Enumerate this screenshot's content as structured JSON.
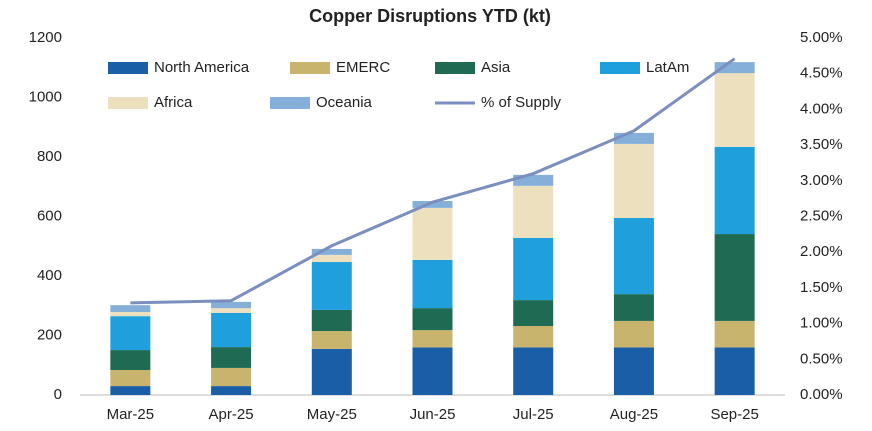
{
  "chart_data": {
    "type": "stacked_bar_line",
    "title": "Copper Disruptions YTD (kt)",
    "categories": [
      "Mar-25",
      "Apr-25",
      "May-25",
      "Jun-25",
      "Jul-25",
      "Aug-25",
      "Sep-25"
    ],
    "series": [
      {
        "name": "North America",
        "color": "#1a5ea8",
        "values": [
          30,
          30,
          155,
          160,
          160,
          160,
          160
        ]
      },
      {
        "name": "EMERC",
        "color": "#c8b46c",
        "values": [
          54,
          61,
          60,
          58,
          72,
          89,
          89
        ]
      },
      {
        "name": "Asia",
        "color": "#1e6a52",
        "values": [
          67,
          70,
          71,
          74,
          87,
          90,
          292
        ]
      },
      {
        "name": "LatAm",
        "color": "#1fa0dc",
        "values": [
          114,
          115,
          161,
          162,
          209,
          256,
          293
        ]
      },
      {
        "name": "Africa",
        "color": "#ece0be",
        "values": [
          14,
          16,
          24,
          175,
          175,
          249,
          248
        ]
      },
      {
        "name": "Oceania",
        "color": "#85afd9",
        "values": [
          23,
          21,
          20,
          23,
          37,
          37,
          37
        ]
      },
      {
        "name": "% of Supply",
        "color": "#7a8fbf",
        "axis": "y2",
        "values": [
          1.29,
          1.32,
          2.09,
          2.7,
          3.1,
          3.7,
          4.71
        ]
      }
    ],
    "ylim": [
      0,
      1200
    ],
    "yticks": [
      0,
      200,
      400,
      600,
      800,
      1000,
      1200
    ],
    "y2lim": [
      0,
      5
    ],
    "y2ticks": [
      {
        "value": 0,
        "label": "0.00%"
      },
      {
        "value": 0.5,
        "label": "0.50%"
      },
      {
        "value": 1,
        "label": "1.00%"
      },
      {
        "value": 1.5,
        "label": "1.50%"
      },
      {
        "value": 2,
        "label": "2.00%"
      },
      {
        "value": 2.5,
        "label": "2.50%"
      },
      {
        "value": 3,
        "label": "3.00%"
      },
      {
        "value": 3.5,
        "label": "3.50%"
      },
      {
        "value": 4,
        "label": "4.00%"
      },
      {
        "value": 4.5,
        "label": "4.50%"
      },
      {
        "value": 5,
        "label": "5.00%"
      }
    ],
    "legend": "top",
    "grid": false
  }
}
